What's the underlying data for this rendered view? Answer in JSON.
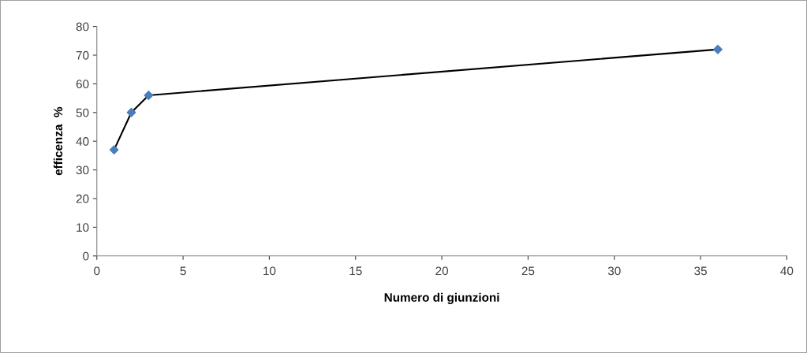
{
  "chart_data": {
    "type": "scatter",
    "xlabel": "Numero di giunzioni",
    "ylabel": "efficenza  %",
    "x": [
      1,
      2,
      3,
      36
    ],
    "series": [
      {
        "type": "line",
        "color": "#000000",
        "marker": "none",
        "values": [
          37,
          50,
          56,
          72
        ]
      },
      {
        "color": "#4a7ebb",
        "marker": "diamond",
        "values": [
          37,
          50,
          56,
          72
        ]
      }
    ],
    "xlim": [
      0,
      40
    ],
    "xticks": [
      0,
      5,
      10,
      15,
      20,
      25,
      30,
      35,
      40
    ],
    "ylim": [
      0,
      80
    ],
    "yticks": [
      0,
      10,
      20,
      30,
      40,
      50,
      60,
      70,
      80
    ],
    "grid": false,
    "legend": false
  }
}
